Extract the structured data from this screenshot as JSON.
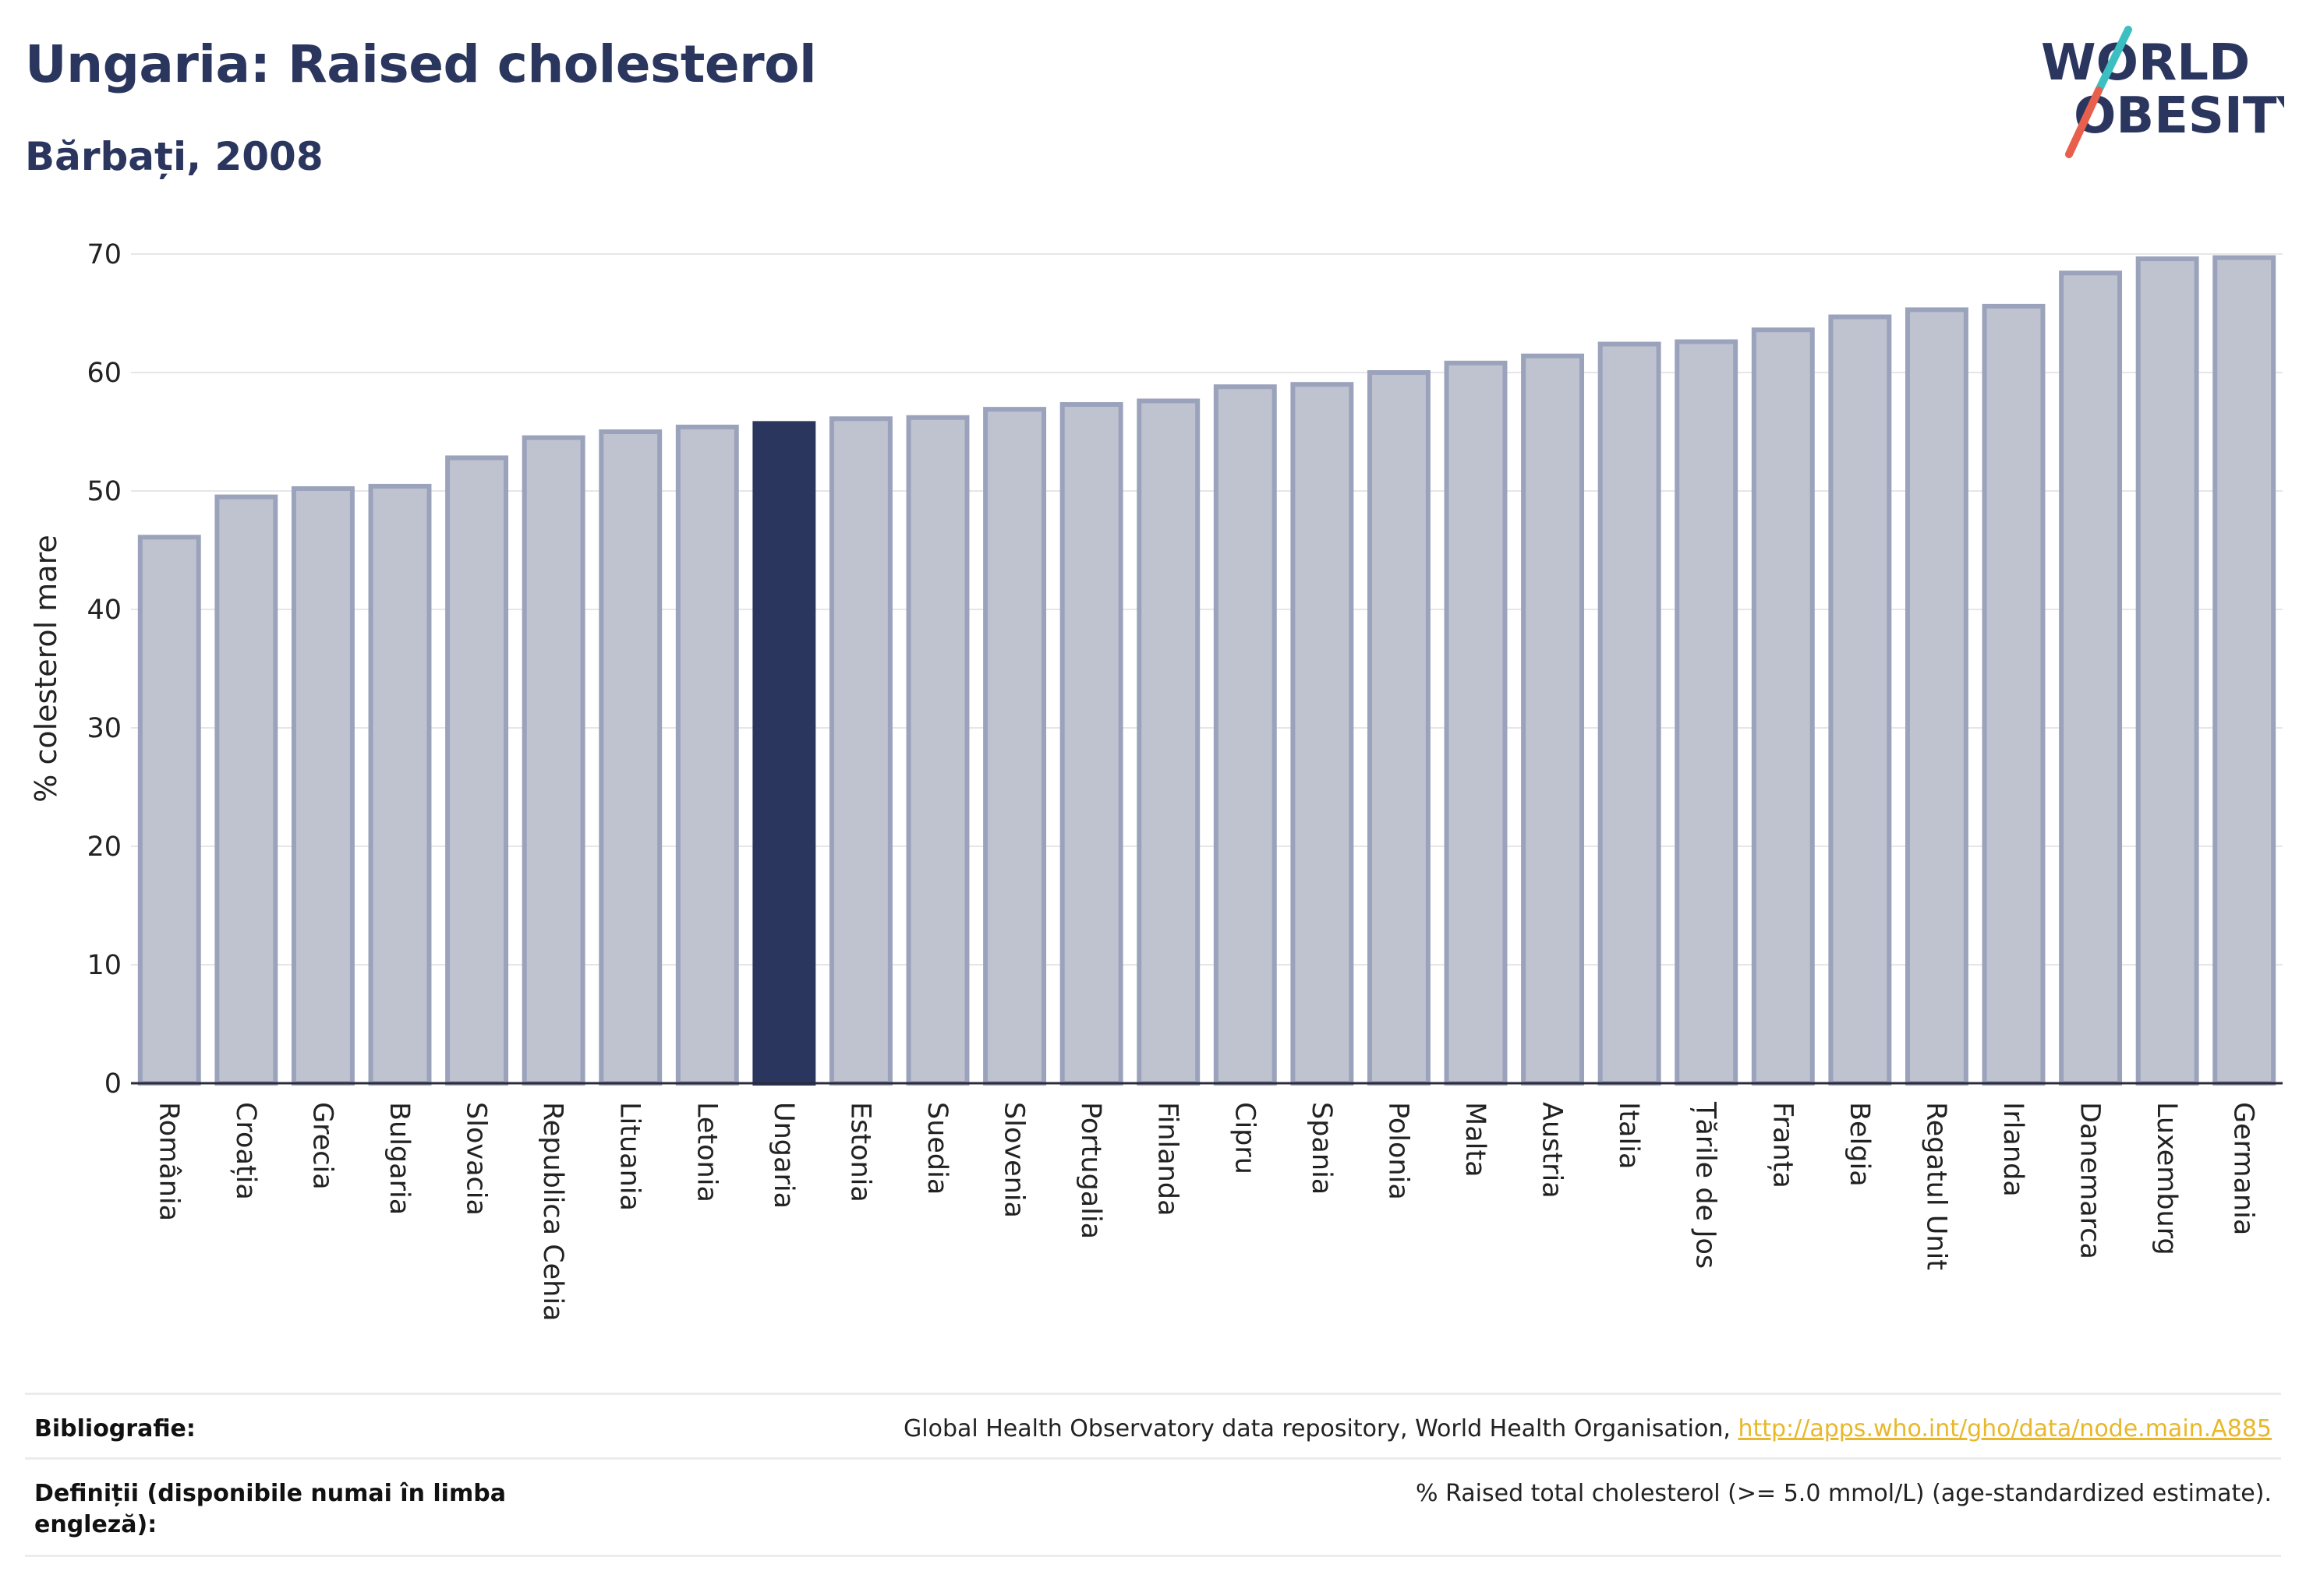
{
  "title": "Ungaria: Raised cholesterol",
  "subtitle": "Bărbați, 2008",
  "logo": {
    "line1": "WORLD",
    "line2": "OBESITY",
    "colors": {
      "text": "#2b365f",
      "slash_top": "#3bbfc0",
      "slash_bottom": "#e8604c"
    }
  },
  "colors": {
    "bar": "#bfc3d0",
    "bar_border": "#9ba2bb",
    "highlight": "#2b365f",
    "grid": "#e6e6e6",
    "axis": "#2b2b3b",
    "link": "#e8b82a"
  },
  "chart_data": {
    "type": "bar",
    "ylabel": "% colesterol mare",
    "xlabel": "",
    "ylim": [
      0,
      70
    ],
    "yticks": [
      0,
      10,
      20,
      30,
      40,
      50,
      60,
      70
    ],
    "grid": true,
    "highlight": "Ungaria",
    "categories": [
      "România",
      "Croația",
      "Grecia",
      "Bulgaria",
      "Slovacia",
      "Republica Cehia",
      "Lituania",
      "Letonia",
      "Ungaria",
      "Estonia",
      "Suedia",
      "Slovenia",
      "Portugalia",
      "Finlanda",
      "Cipru",
      "Spania",
      "Polonia",
      "Malta",
      "Austria",
      "Italia",
      "Țările de Jos",
      "Franța",
      "Belgia",
      "Regatul Unit",
      "Irlanda",
      "Danemarca",
      "Luxemburg",
      "Germania"
    ],
    "values": [
      46.1,
      49.5,
      50.2,
      50.4,
      52.8,
      54.5,
      55.0,
      55.4,
      55.7,
      56.1,
      56.2,
      56.9,
      57.3,
      57.6,
      58.8,
      59.0,
      60.0,
      60.8,
      61.4,
      62.4,
      62.6,
      63.6,
      64.7,
      65.3,
      65.6,
      68.4,
      69.6,
      69.7
    ]
  },
  "footer": {
    "source_label": "Bibliografie:",
    "source_text": "Global Health Observatory data repository, World Health Organisation, ",
    "source_link": "http://apps.who.int/gho/data/node.main.A885",
    "definition_label": "Definiții (disponibile numai în limba engleză):",
    "definition_text": "% Raised total cholesterol (>= 5.0 mmol/L) (age-standardized estimate)."
  }
}
